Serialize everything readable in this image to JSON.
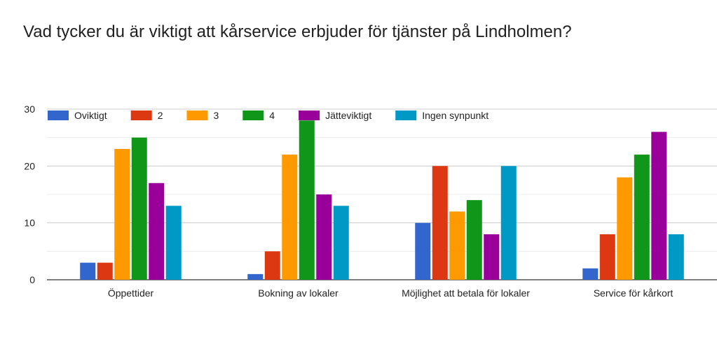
{
  "title": "Vad tycker du är viktigt att kårservice erbjuder för tjänster på Lindholmen?",
  "chart_data": {
    "type": "bar",
    "title": "Vad tycker du är viktigt att kårservice erbjuder för tjänster på Lindholmen?",
    "xlabel": "",
    "ylabel": "",
    "ylim": [
      0,
      30
    ],
    "yticks": [
      0,
      10,
      20,
      30
    ],
    "grid": true,
    "legend_position": "top",
    "categories": [
      "Öppettider",
      "Bokning av lokaler",
      "Möjlighet att betala för lokaler",
      "Service för kårkort"
    ],
    "series": [
      {
        "name": "Oviktigt",
        "color": "#3366cc",
        "values": [
          3,
          1,
          10,
          2
        ]
      },
      {
        "name": "2",
        "color": "#dc3912",
        "values": [
          3,
          5,
          20,
          8
        ]
      },
      {
        "name": "3",
        "color": "#ff9900",
        "values": [
          23,
          22,
          12,
          18
        ]
      },
      {
        "name": "4",
        "color": "#109618",
        "values": [
          25,
          28,
          14,
          22
        ]
      },
      {
        "name": "Jätteviktigt",
        "color": "#990099",
        "values": [
          17,
          15,
          8,
          26
        ]
      },
      {
        "name": "Ingen synpunkt",
        "color": "#0099c6",
        "values": [
          13,
          13,
          20,
          8
        ]
      }
    ]
  }
}
